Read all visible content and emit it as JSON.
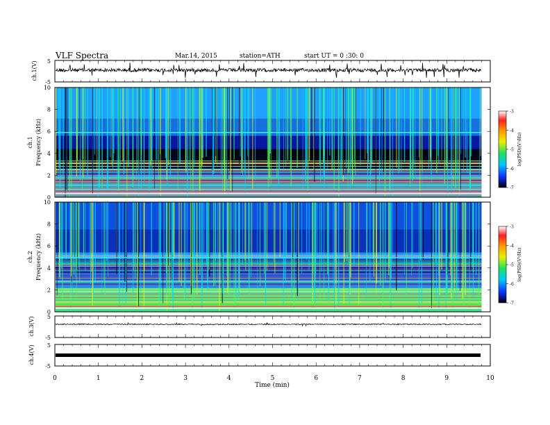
{
  "header": {
    "title": "VLF Spectra",
    "date": "Mar.14, 2015",
    "station": "station=ATH",
    "start_ut": "start UT = 0 :30: 0"
  },
  "chart_data": [
    {
      "type": "line",
      "panel": "ch1-waveform",
      "ylabel": "ch.1(V)",
      "yticks": [
        "5",
        "-5"
      ],
      "ylim": [
        -5,
        5
      ],
      "xlim": [
        0,
        10
      ],
      "data_end_min": 9.8,
      "description_values": "noisy waveform centred near 0 V with frequent spikes"
    },
    {
      "type": "heatmap",
      "panel": "ch1-spectrogram",
      "ylabel_lines": [
        "ch.1",
        "Frequency (kHz)"
      ],
      "yticks": [
        "10",
        "8",
        "6",
        "4",
        "2",
        "0"
      ],
      "ylim": [
        0,
        10
      ],
      "xlim": [
        0,
        10
      ],
      "data_end_min": 9.8,
      "colorbar": {
        "label": "log(PSD)(V²/Hz)",
        "ticks": [
          "-3",
          "-4",
          "-5",
          "-6",
          "-7"
        ],
        "range": [
          -7,
          -3
        ]
      }
    },
    {
      "type": "heatmap",
      "panel": "ch2-spectrogram",
      "ylabel_lines": [
        "ch.2",
        "Frequency (kHz)"
      ],
      "yticks": [
        "10",
        "8",
        "6",
        "4",
        "2",
        "0"
      ],
      "ylim": [
        0,
        10
      ],
      "xlim": [
        0,
        10
      ],
      "data_end_min": 9.8,
      "colorbar": {
        "label": "log(PSD)(V²/Hz)",
        "ticks": [
          "-3",
          "-4",
          "-5",
          "-6",
          "-7"
        ],
        "range": [
          -7,
          -3
        ]
      }
    },
    {
      "type": "line",
      "panel": "ch3-waveform",
      "ylabel": "ch.3(V)",
      "yticks": [
        "5",
        "-5"
      ],
      "ylim": [
        -5,
        5
      ],
      "xlim": [
        0,
        10
      ],
      "data_end_min": 9.8
    },
    {
      "type": "line",
      "panel": "ch4-waveform",
      "ylabel": "ch.4(V)",
      "yticks": [
        "5",
        "-5"
      ],
      "ylim": [
        -5,
        5
      ],
      "xlim": [
        0,
        10
      ],
      "data_end_min": 9.8
    }
  ],
  "x_axis": {
    "label": "Time (min)",
    "ticks": [
      "0",
      "1",
      "2",
      "3",
      "4",
      "5",
      "6",
      "7",
      "8",
      "9",
      "10"
    ]
  }
}
